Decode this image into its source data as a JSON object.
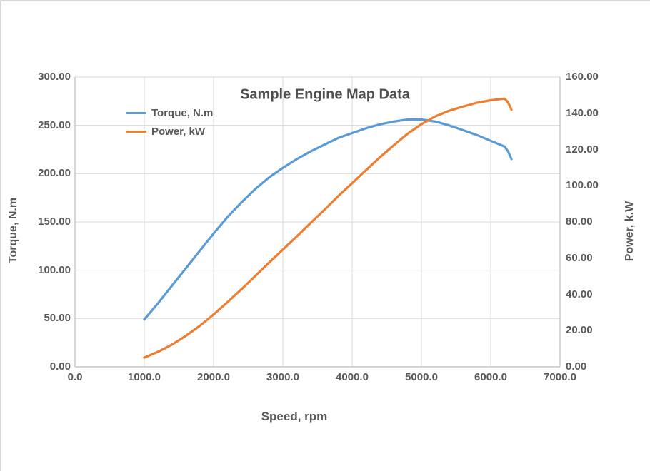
{
  "chart": {
    "title": "Sample Engine Map Data",
    "x_axis": {
      "title": "Speed, rpm",
      "tick_values": [
        0,
        1000,
        2000,
        3000,
        4000,
        5000,
        6000,
        7000
      ],
      "tick_labels": [
        "0.0",
        "1000.0",
        "2000.0",
        "3000.0",
        "4000.0",
        "5000.0",
        "6000.0",
        "7000.0"
      ]
    },
    "y_left_axis": {
      "title": "Torque, N.m",
      "tick_values": [
        0,
        50,
        100,
        150,
        200,
        250,
        300
      ],
      "tick_labels": [
        "0.00",
        "50.00",
        "100.00",
        "150.00",
        "200.00",
        "250.00",
        "300.00"
      ]
    },
    "y_right_axis": {
      "title": "Power, k.W",
      "tick_values": [
        0,
        20,
        40,
        60,
        80,
        100,
        120,
        140,
        160
      ],
      "tick_labels": [
        "0.00",
        "20.00",
        "40.00",
        "60.00",
        "80.00",
        "100.00",
        "120.00",
        "140.00",
        "160.00"
      ]
    },
    "legend": [
      {
        "label": "Torque, N.m",
        "color": "#5B9BD5"
      },
      {
        "label": "Power, kW",
        "color": "#ED7D31"
      }
    ]
  },
  "chart_data": {
    "type": "line",
    "title": "Sample Engine Map Data",
    "xlabel": "Speed, rpm",
    "ylabel_left": "Torque, N.m",
    "ylabel_right": "Power, k.W",
    "x_range": [
      0,
      7000
    ],
    "y_left_range": [
      0,
      300
    ],
    "y_right_range": [
      0,
      160
    ],
    "grid": true,
    "legend_position": "inside-top-left",
    "x": [
      1000,
      1200,
      1400,
      1600,
      1800,
      2000,
      2200,
      2400,
      2600,
      2800,
      3000,
      3200,
      3400,
      3600,
      3800,
      4000,
      4200,
      4400,
      4600,
      4800,
      5000,
      5200,
      5400,
      5600,
      5800,
      6000,
      6200,
      6250,
      6300
    ],
    "series": [
      {
        "name": "Torque, N.m",
        "axis": "left",
        "color": "#5B9BD5",
        "values": [
          49,
          66,
          84,
          102,
          120,
          138,
          155,
          170,
          184,
          196,
          206,
          215,
          223,
          230,
          237,
          242,
          247,
          251,
          254,
          256,
          256,
          254,
          250,
          245,
          240,
          234,
          228,
          223,
          215
        ]
      },
      {
        "name": "Power, kW",
        "axis": "right",
        "color": "#ED7D31",
        "values": [
          5.1,
          8.3,
          12.3,
          17.1,
          22.6,
          28.9,
          35.7,
          42.7,
          50.1,
          57.5,
          64.7,
          72.0,
          79.4,
          86.7,
          94.3,
          101.4,
          108.6,
          115.7,
          122.3,
          128.7,
          134.0,
          138.3,
          141.4,
          143.7,
          145.8,
          147.2,
          148.1,
          146.0,
          142.0
        ]
      }
    ]
  }
}
